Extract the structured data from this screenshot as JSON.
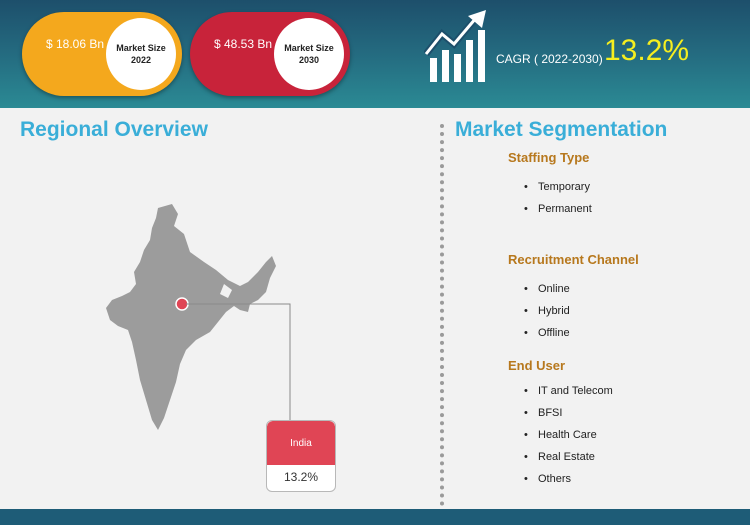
{
  "header": {
    "market_2022": {
      "value": "$ 18.06 Bn",
      "label": "Market Size 2022"
    },
    "market_2030": {
      "value": "$ 48.53 Bn",
      "label": "Market Size 2030"
    },
    "cagr_label": "CAGR ( 2022-2030)",
    "cagr_value": "13.2%",
    "icon": "growth-chart-icon"
  },
  "regional": {
    "title": "Regional Overview",
    "region": "India",
    "region_value": "13.2%",
    "map_icon": "india-map-icon"
  },
  "segmentation": {
    "title": "Market Segmentation",
    "groups": [
      {
        "heading": "Staffing Type",
        "items": [
          "Temporary",
          "Permanent"
        ]
      },
      {
        "heading": "Recruitment Channel",
        "items": [
          "Online",
          "Hybrid",
          "Offline"
        ]
      },
      {
        "heading": "End User",
        "items": [
          "IT and Telecom",
          "BFSI",
          "Health Care",
          "Real Estate",
          "Others"
        ]
      }
    ]
  },
  "colors": {
    "header_dark": "#1d4f6b",
    "accent_orange": "#f4a81d",
    "accent_red": "#c8233a",
    "cagr_yellow": "#f5ee1f",
    "title_blue": "#3aaed8",
    "segment_heading": "#b7781d",
    "footer": "#1e5c77"
  }
}
